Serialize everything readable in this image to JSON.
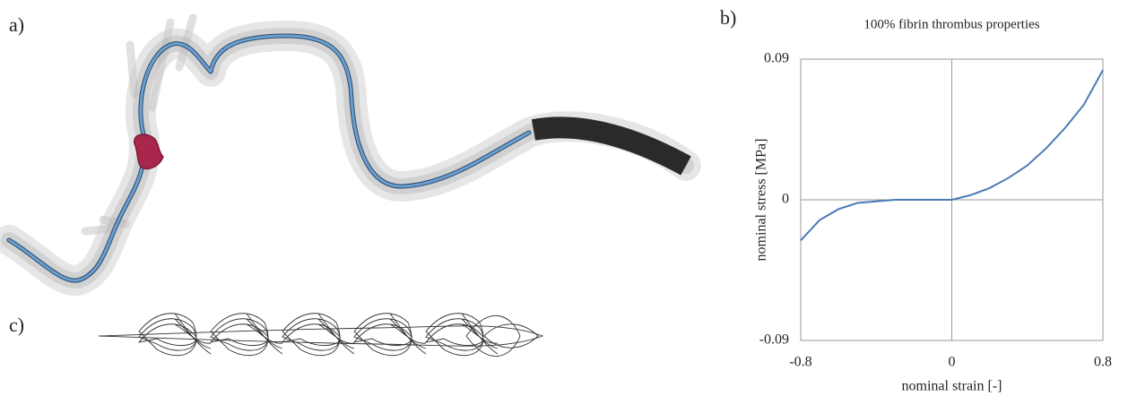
{
  "figure": {
    "labels": [
      "a)",
      "b)",
      "c)"
    ]
  },
  "chart_data": {
    "type": "line",
    "title": "100% fibrin thrombus properties",
    "xlabel": "nominal strain [-]",
    "ylabel": "nominal stress [MPa]",
    "x": [
      -0.8,
      -0.7,
      -0.6,
      -0.5,
      -0.4,
      -0.3,
      -0.2,
      -0.1,
      0,
      0.1,
      0.2,
      0.3,
      0.4,
      0.5,
      0.6,
      0.7,
      0.8
    ],
    "series": [
      {
        "color": "#4a7ab5",
        "values": [
          -0.026,
          -0.013,
          -0.006,
          -0.002,
          -0.001,
          0,
          0,
          0,
          0,
          0.003,
          0.0075,
          0.014,
          0.022,
          0.033,
          0.046,
          0.061,
          0.083
        ]
      }
    ],
    "xlim": [
      -0.8,
      0.8
    ],
    "ylim": [
      -0.09,
      0.09
    ],
    "xticks": [
      -0.8,
      0,
      0.8
    ],
    "yticks": [
      -0.09,
      0,
      0.09
    ]
  }
}
